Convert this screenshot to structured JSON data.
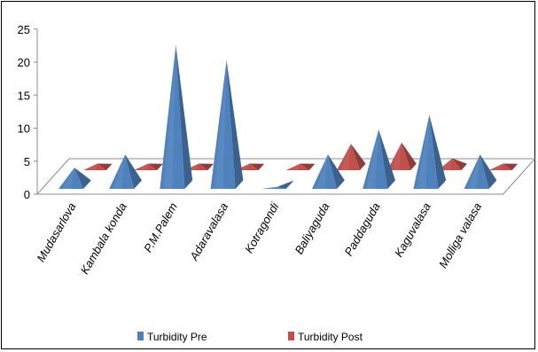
{
  "chart_data": {
    "type": "bar",
    "style": "3d-pyramid",
    "categories": [
      "Mudasarlova",
      "Kambala konda",
      "P.M.Palem",
      "Adaravalasa",
      "Kotragondi",
      "Baliyaguda",
      "Paddaguda",
      "Kaguvalasa",
      "Molliga valasa"
    ],
    "series": [
      {
        "name": "Turbidity Pre",
        "color": "#4f81bd",
        "values": [
          3.2,
          5.2,
          21.8,
          19.5,
          0.3,
          5.2,
          9.0,
          11.2,
          5.2
        ]
      },
      {
        "name": "Turbidity Post",
        "color": "#c0504d",
        "values": [
          1.0,
          1.0,
          1.0,
          1.0,
          1.0,
          4.0,
          4.2,
          1.8,
          1.0
        ]
      }
    ],
    "y_ticks": [
      "0",
      "5",
      "10",
      "15",
      "20",
      "25"
    ],
    "ylim": [
      0,
      25
    ],
    "grid": false,
    "legend_position": "bottom",
    "title": "",
    "xlabel": "",
    "ylabel": ""
  }
}
